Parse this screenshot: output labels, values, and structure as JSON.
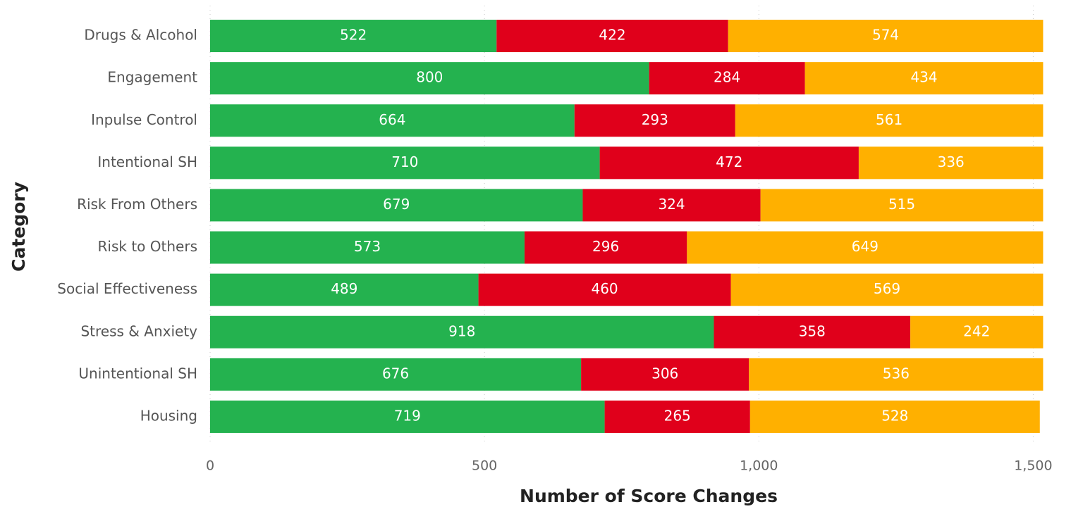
{
  "chart_data": {
    "type": "stacked_bar_horizontal",
    "x_label": "Number of Score Changes",
    "y_label": "Category",
    "categories": [
      "Drugs & Alcohol",
      "Engagement",
      "Inpulse Control",
      "Intentional SH",
      "Risk From Others",
      "Risk to Others",
      "Social Effectiveness",
      "Stress & Anxiety",
      "Unintentional SH",
      "Housing"
    ],
    "series": [
      {
        "color": "#24b24f",
        "values": [
          522,
          800,
          664,
          710,
          679,
          573,
          489,
          918,
          676,
          719
        ]
      },
      {
        "color": "#e0001b",
        "values": [
          422,
          284,
          293,
          472,
          324,
          296,
          460,
          358,
          306,
          265
        ]
      },
      {
        "color": "#ffb000",
        "values": [
          574,
          434,
          561,
          336,
          515,
          649,
          569,
          242,
          536,
          528
        ]
      }
    ],
    "xlim": [
      0,
      1520
    ],
    "xticks": [
      0,
      500,
      {
        "value": 1000,
        "label": "1,000"
      },
      {
        "value": 1500,
        "label": "1,500"
      }
    ],
    "grid": true
  }
}
